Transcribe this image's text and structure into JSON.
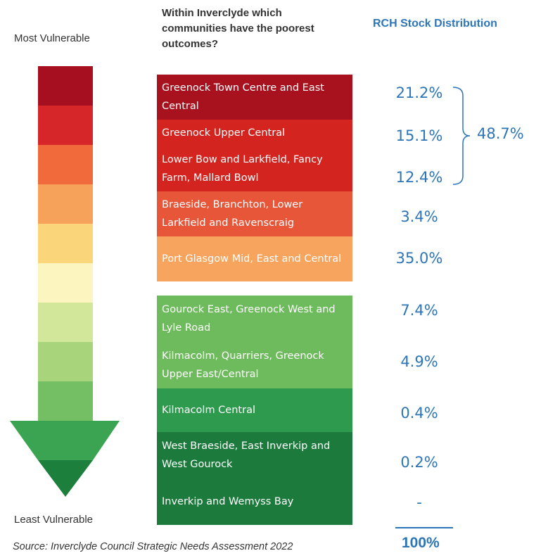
{
  "labels": {
    "most_vulnerable": "Most Vulnerable",
    "least_vulnerable": "Least Vulnerable"
  },
  "header": {
    "question": "Within Inverclyde which communities have the poorest outcomes?",
    "rch": "RCH Stock Distribution"
  },
  "colors": {
    "arrow": [
      "#a50f20",
      "#d7262a",
      "#f06a3c",
      "#f6a25a",
      "#fad57a",
      "#fdf5c0",
      "#d3e79a",
      "#a8d47c",
      "#74bf64",
      "#3ba452",
      "#1d7f3c"
    ],
    "rows": [
      "#a8111e",
      "#d4241f",
      "#d4241f",
      "#e8563a",
      "#f7a55e",
      "#6dbb5c",
      "#6dbb5c",
      "#2e9a4e",
      "#1c7b3c",
      "#1c7b3c"
    ],
    "accent": "#2e75b6"
  },
  "communities": [
    {
      "name": "Greenock Town Centre and East Central",
      "pct": "21.2%"
    },
    {
      "name": "Greenock Upper Central",
      "pct": "15.1%"
    },
    {
      "name": "Lower Bow and Larkfield, Fancy Farm, Mallard Bowl",
      "pct": "12.4%"
    },
    {
      "name": "Braeside, Branchton, Lower Larkfield and Ravenscraig",
      "pct": "3.4%"
    },
    {
      "name": "Port Glasgow Mid, East and Central",
      "pct": "35.0%"
    },
    {
      "name": "Gourock East, Greenock West and Lyle Road",
      "pct": "7.4%"
    },
    {
      "name": "Kilmacolm, Quarriers, Greenock Upper East/Central",
      "pct": "4.9%"
    },
    {
      "name": "Kilmacolm Central",
      "pct": "0.4%"
    },
    {
      "name": "West Braeside, East Inverkip and West Gourock",
      "pct": "0.2%"
    },
    {
      "name": "Inverkip and Wemyss Bay",
      "pct": "-"
    }
  ],
  "bracket_total": "48.7%",
  "total": "100%",
  "source": "Source: Inverclyde Council Strategic Needs Assessment 2022"
}
